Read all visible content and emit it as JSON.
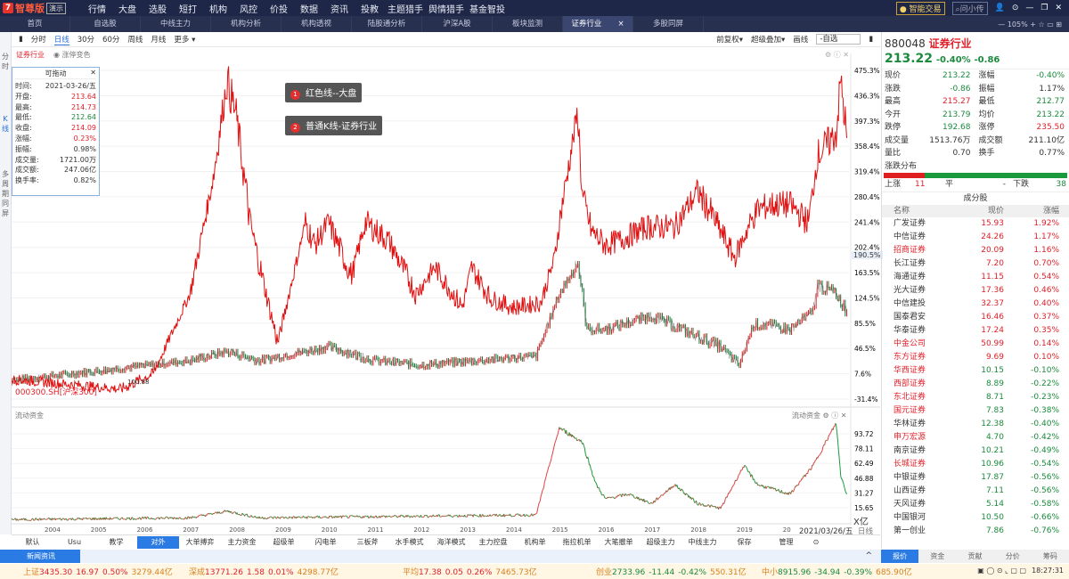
{
  "app": {
    "brand": "智尊版",
    "edition": "演示",
    "nav": [
      "行情",
      "大盘",
      "选股",
      "短打",
      "机构",
      "风控",
      "价投",
      "数据",
      "资讯",
      "投教",
      "主题猎手",
      "舆情猎手",
      "基金智投"
    ],
    "smart_trade": "智能交易",
    "ask": "问小传"
  },
  "tabs": {
    "items": [
      "首页",
      "自选股",
      "中线主力",
      "机构分析",
      "机构透视",
      "陆股通分析",
      "沪深A股",
      "板块监测",
      "证券行业",
      "多股同屏"
    ],
    "active": "证券行业",
    "zoom": "105%"
  },
  "left_strip": [
    "分时",
    "K线",
    "多周期同屏"
  ],
  "toolbar": {
    "periods": [
      "分时",
      "日线",
      "30分",
      "60分",
      "周线",
      "月线",
      "更多 ▾"
    ],
    "active": "日线",
    "right": [
      "前复权▾",
      "超级叠加▾",
      "画线"
    ],
    "select": "-自选"
  },
  "chart_header": {
    "name": "证券行业",
    "option": "涨停变色"
  },
  "infobox": {
    "title": "可拖动",
    "rows": [
      [
        "时间:",
        "2021-03-26/五",
        ""
      ],
      [
        "开盘:",
        "213.64",
        "red"
      ],
      [
        "最高:",
        "214.73",
        "red"
      ],
      [
        "最低:",
        "212.64",
        "grn"
      ],
      [
        "收盘:",
        "214.09",
        "red"
      ],
      [
        "涨幅:",
        "0.23%",
        "red"
      ],
      [
        "振幅:",
        "0.98%",
        ""
      ],
      [
        "成交量:",
        "1721.00万",
        ""
      ],
      [
        "成交额:",
        "247.06亿",
        ""
      ],
      [
        "换手率:",
        "0.82%",
        ""
      ]
    ]
  },
  "notes": [
    "红色线--大盘",
    "普通K线-证券行业"
  ],
  "overlay_label": "000300.SH[沪深300]",
  "marker_label": "100.88",
  "current_pct": "190.5%",
  "chart_data": {
    "type": "line",
    "y_ticks": [
      "475.3%",
      "436.3%",
      "397.3%",
      "358.4%",
      "319.4%",
      "280.4%",
      "241.4%",
      "202.4%",
      "163.5%",
      "124.5%",
      "85.5%",
      "46.5%",
      "7.6%",
      "-31.4%"
    ],
    "ylim": [
      -31.4,
      475.3
    ],
    "x_ticks": [
      "2004",
      "2005",
      "2006",
      "2007",
      "2008",
      "2009",
      "2010",
      "2011",
      "2012",
      "2013",
      "2014",
      "2015",
      "2016",
      "2017",
      "2018",
      "2019",
      "20"
    ],
    "series": [
      {
        "name": "红色线--大盘",
        "color": "#e01010",
        "x": [
          2003.0,
          2005.5,
          2006.2,
          2007.0,
          2007.5,
          2007.8,
          2008.0,
          2008.3,
          2008.6,
          2008.9,
          2009.5,
          2009.7,
          2010.0,
          2010.5,
          2010.8,
          2011.3,
          2011.9,
          2012.3,
          2012.9,
          2013.1,
          2013.5,
          2014.0,
          2014.6,
          2014.9,
          2015.0,
          2015.4,
          2015.5,
          2015.7,
          2016.0,
          2016.3,
          2016.9,
          2017.5,
          2018.0,
          2018.3,
          2018.6,
          2018.8,
          2019.1,
          2019.3,
          2019.6,
          2020.0,
          2020.4,
          2020.6,
          2021.0,
          2021.1,
          2021.23
        ],
        "y": [
          0,
          -16,
          7.6,
          131,
          309,
          460,
          405,
          241,
          145,
          55,
          241,
          206,
          241,
          158,
          241,
          213,
          131,
          172,
          110,
          172,
          124,
          110,
          117,
          186,
          241,
          412,
          282,
          227,
          206,
          213,
          234,
          234,
          289,
          254,
          213,
          186,
          234,
          261,
          268,
          268,
          241,
          344,
          378,
          460,
          371
        ]
      },
      {
        "name": "普通K线-证券行业",
        "color": "#444444",
        "x": [
          2003.0,
          2007.0,
          2007.8,
          2008.5,
          2009.5,
          2010.0,
          2011.0,
          2012.0,
          2014.5,
          2015.0,
          2015.4,
          2015.6,
          2016.0,
          2017.0,
          2018.5,
          2018.9,
          2019.2,
          2019.5,
          2020.0,
          2020.5,
          2020.6,
          2021.0,
          2021.23
        ],
        "y": [
          -4,
          28,
          42,
          28,
          42,
          49,
          28,
          21,
          35,
          131,
          179,
          76,
          76,
          97,
          49,
          21,
          83,
          83,
          76,
          104,
          145,
          131,
          104
        ]
      }
    ],
    "flow": {
      "title": "流动资金",
      "unit": "X亿",
      "y_ticks": [
        "93.72",
        "78.11",
        "62.49",
        "46.88",
        "31.27",
        "15.65"
      ],
      "ylim": [
        0,
        109.3
      ],
      "x": [
        2003.0,
        2007.0,
        2007.8,
        2008.5,
        2014.5,
        2015.0,
        2015.5,
        2015.8,
        2016.0,
        2016.5,
        2017.0,
        2017.5,
        2018.0,
        2018.5,
        2019.0,
        2019.3,
        2020.0,
        2020.5,
        2021.0,
        2021.1,
        2021.23
      ],
      "y": [
        3,
        5,
        12,
        5,
        8,
        100,
        85,
        40,
        25,
        30,
        20,
        40,
        20,
        15,
        60,
        40,
        30,
        60,
        105,
        50,
        30
      ]
    },
    "date_label": "2021/03/26/五",
    "period_label": "日线"
  },
  "quote": {
    "code": "880048",
    "name": "证券行业",
    "price": "213.22",
    "pct": "-0.40%",
    "chg": "-0.86",
    "rows": [
      [
        "现价",
        "213.22",
        "grn",
        "涨幅",
        "-0.40%",
        "grn"
      ],
      [
        "涨跌",
        "-0.86",
        "grn",
        "振幅",
        "1.17%",
        ""
      ],
      [
        "最高",
        "215.27",
        "red",
        "最低",
        "212.77",
        "grn"
      ],
      [
        "今开",
        "213.79",
        "grn",
        "均价",
        "213.22",
        "grn"
      ],
      [
        "跌停",
        "192.68",
        "grn",
        "涨停",
        "235.50",
        "red"
      ],
      [
        "成交量",
        "1513.76万",
        "",
        "成交额",
        "211.10亿",
        ""
      ],
      [
        "量比",
        "0.70",
        "",
        "换手",
        "0.77%",
        ""
      ]
    ],
    "dist_title": "涨跌分布",
    "up_label": "上涨",
    "up": "11",
    "flat_label": "平",
    "flat": "-",
    "down_label": "下跌",
    "down": "38",
    "cons_title": "成分股",
    "cols": [
      "名称",
      "现价",
      "涨幅"
    ],
    "cons": [
      [
        "广发证券",
        "15.93",
        "1.92%",
        0
      ],
      [
        "中信证券",
        "24.26",
        "1.17%",
        0
      ],
      [
        "招商证券",
        "20.09",
        "1.16%",
        1
      ],
      [
        "长江证券",
        "7.20",
        "0.70%",
        0
      ],
      [
        "海通证券",
        "11.15",
        "0.54%",
        0
      ],
      [
        "光大证券",
        "17.36",
        "0.46%",
        0
      ],
      [
        "中信建投",
        "32.37",
        "0.40%",
        0
      ],
      [
        "国泰君安",
        "16.46",
        "0.37%",
        0
      ],
      [
        "华泰证券",
        "17.24",
        "0.35%",
        0
      ],
      [
        "中金公司",
        "50.99",
        "0.14%",
        1
      ],
      [
        "东方证券",
        "9.69",
        "0.10%",
        1
      ],
      [
        "华西证券",
        "10.15",
        "-0.10%",
        1
      ],
      [
        "西部证券",
        "8.89",
        "-0.22%",
        1
      ],
      [
        "东北证券",
        "8.71",
        "-0.23%",
        1
      ],
      [
        "国元证券",
        "7.83",
        "-0.38%",
        1
      ],
      [
        "华林证券",
        "12.38",
        "-0.40%",
        0
      ],
      [
        "申万宏源",
        "4.70",
        "-0.42%",
        1
      ],
      [
        "南京证券",
        "10.21",
        "-0.49%",
        0
      ],
      [
        "长城证券",
        "10.96",
        "-0.54%",
        1
      ],
      [
        "中银证券",
        "17.87",
        "-0.56%",
        0
      ],
      [
        "山西证券",
        "7.11",
        "-0.56%",
        0
      ],
      [
        "天风证券",
        "5.14",
        "-0.58%",
        0
      ],
      [
        "中国银河",
        "10.50",
        "-0.66%",
        0
      ],
      [
        "第一创业",
        "7.86",
        "-0.76%",
        0
      ]
    ]
  },
  "bottom_tabs": {
    "items": [
      "默认",
      "Usu",
      "教学",
      "对外",
      "大单搏弈",
      "主力资金",
      "超级单",
      "闪电单",
      "三板斧",
      "水手模式",
      "海洋模式",
      "主力控盘",
      "机构单",
      "拖拉机单",
      "大笔撤单",
      "超级主力",
      "中线主力",
      "保存",
      "管理"
    ],
    "active": "对外"
  },
  "news": "新闻资讯",
  "right_tabs": {
    "items": [
      "报价",
      "资金",
      "贡献",
      "分价",
      "筹码"
    ],
    "active": "报价"
  },
  "ticker": [
    [
      "上证",
      "3435.30",
      "16.97",
      "0.50%",
      "3279.44亿",
      "red"
    ],
    [
      "深成",
      "13771.26",
      "1.58",
      "0.01%",
      "4298.77亿",
      "red"
    ],
    [
      "平均",
      "17.38",
      "0.05",
      "0.26%",
      "7465.73亿",
      "red"
    ],
    [
      "创业",
      "2733.96",
      "-11.44",
      "-0.42%",
      "550.31亿",
      "grn"
    ],
    [
      "中小",
      "8915.96",
      "-34.94",
      "-0.39%",
      "685.90亿",
      "grn"
    ]
  ],
  "time": "18:27:31"
}
